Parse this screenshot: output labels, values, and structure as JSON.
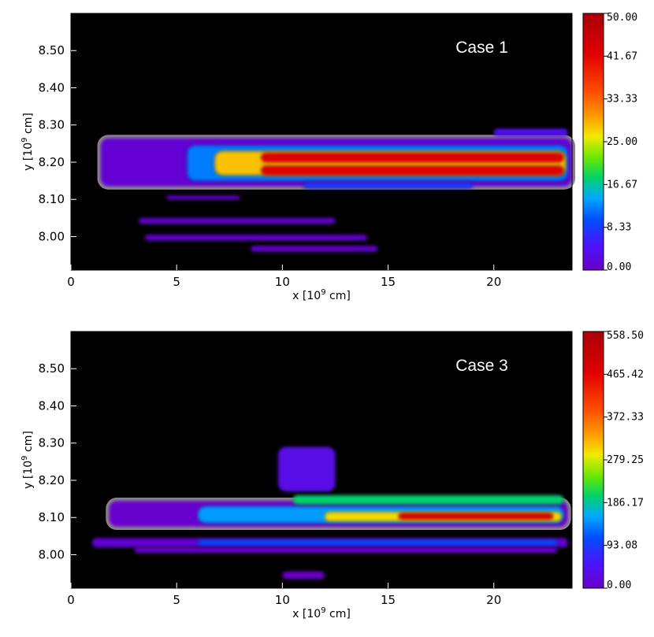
{
  "chart_data": [
    {
      "type": "heatmap",
      "title": "Case 1",
      "xlabel_base": "x [10",
      "xlabel_exp": "9",
      "xlabel_unit": " cm]",
      "ylabel_base": "y [10",
      "ylabel_exp": "9",
      "ylabel_unit": " cm]",
      "xlim": [
        0,
        23.7
      ],
      "ylim": [
        7.91,
        8.6
      ],
      "x_ticks": [
        0,
        5,
        10,
        15,
        20
      ],
      "x_tick_labels": [
        "0",
        "5",
        "10",
        "15",
        "20"
      ],
      "y_ticks": [
        8.0,
        8.1,
        8.2,
        8.3,
        8.4,
        8.5
      ],
      "y_tick_labels": [
        "8.00",
        "8.10",
        "8.20",
        "8.30",
        "8.40",
        "8.50"
      ],
      "colorbar": {
        "min": 0.0,
        "max": 50.0,
        "ticks": [
          0.0,
          8.33,
          16.67,
          25.0,
          33.33,
          41.67,
          50.0
        ],
        "tick_labels": [
          "0.00",
          "8.33",
          "16.67",
          "25.00",
          "33.33",
          "41.67",
          "50.00"
        ]
      },
      "features": [
        {
          "shape": "band",
          "x": [
            1.4,
            23.7
          ],
          "y": [
            8.135,
            8.265
          ],
          "value": 1
        },
        {
          "shape": "band",
          "x": [
            5.5,
            23.5
          ],
          "y": [
            8.15,
            8.245
          ],
          "value": 12
        },
        {
          "shape": "band",
          "x": [
            6.8,
            23.4
          ],
          "y": [
            8.165,
            8.23
          ],
          "value": 28
        },
        {
          "shape": "band",
          "x": [
            9,
            23.3
          ],
          "y": [
            8.2,
            8.225
          ],
          "value": 42
        },
        {
          "shape": "band",
          "x": [
            9,
            23.3
          ],
          "y": [
            8.165,
            8.19
          ],
          "value": 42
        },
        {
          "shape": "band",
          "x": [
            11,
            19
          ],
          "y": [
            8.13,
            8.145
          ],
          "value": 8
        },
        {
          "shape": "band",
          "x": [
            4.5,
            8
          ],
          "y": [
            8.1,
            8.11
          ],
          "value": 1
        },
        {
          "shape": "band",
          "x": [
            3.2,
            12.5
          ],
          "y": [
            8.035,
            8.05
          ],
          "value": 1
        },
        {
          "shape": "band",
          "x": [
            3.5,
            14
          ],
          "y": [
            7.99,
            8.005
          ],
          "value": 1
        },
        {
          "shape": "band",
          "x": [
            8.5,
            14.5
          ],
          "y": [
            7.96,
            7.975
          ],
          "value": 1
        },
        {
          "shape": "band",
          "x": [
            20,
            23.5
          ],
          "y": [
            8.27,
            8.29
          ],
          "value": 4
        }
      ]
    },
    {
      "type": "heatmap",
      "title": "Case 3",
      "xlabel_base": "x [10",
      "xlabel_exp": "9",
      "xlabel_unit": " cm]",
      "ylabel_base": "y [10",
      "ylabel_exp": "9",
      "ylabel_unit": " cm]",
      "xlim": [
        0,
        23.7
      ],
      "ylim": [
        7.91,
        8.6
      ],
      "x_ticks": [
        0,
        5,
        10,
        15,
        20
      ],
      "x_tick_labels": [
        "0",
        "5",
        "10",
        "15",
        "20"
      ],
      "y_ticks": [
        8.0,
        8.1,
        8.2,
        8.3,
        8.4,
        8.5
      ],
      "y_tick_labels": [
        "8.00",
        "8.10",
        "8.20",
        "8.30",
        "8.40",
        "8.50"
      ],
      "colorbar": {
        "min": 0.0,
        "max": 558.5,
        "ticks": [
          0.0,
          93.08,
          186.17,
          279.25,
          372.33,
          465.42,
          558.5
        ],
        "tick_labels": [
          "0.00",
          "93.08",
          "186.17",
          "279.25",
          "372.33",
          "465.42",
          "558.50"
        ]
      },
      "features": [
        {
          "shape": "band",
          "x": [
            1.8,
            23.5
          ],
          "y": [
            8.075,
            8.145
          ],
          "value": 5
        },
        {
          "shape": "band",
          "x": [
            6,
            23.3
          ],
          "y": [
            8.085,
            8.13
          ],
          "value": 150
        },
        {
          "shape": "band",
          "x": [
            12,
            23.2
          ],
          "y": [
            8.09,
            8.115
          ],
          "value": 300
        },
        {
          "shape": "band",
          "x": [
            15.5,
            22.8
          ],
          "y": [
            8.095,
            8.112
          ],
          "value": 470
        },
        {
          "shape": "band",
          "x": [
            1,
            23.5
          ],
          "y": [
            8.02,
            8.045
          ],
          "value": 10
        },
        {
          "shape": "band",
          "x": [
            6,
            23
          ],
          "y": [
            8.025,
            8.04
          ],
          "value": 110
        },
        {
          "shape": "band",
          "x": [
            3,
            23
          ],
          "y": [
            8.005,
            8.02
          ],
          "value": 5
        },
        {
          "shape": "band",
          "x": [
            10.5,
            23.3
          ],
          "y": [
            8.135,
            8.16
          ],
          "value": 200
        },
        {
          "shape": "band",
          "x": [
            9.8,
            12.5
          ],
          "y": [
            8.17,
            8.29
          ],
          "value": 30
        },
        {
          "shape": "band",
          "x": [
            10,
            12
          ],
          "y": [
            7.935,
            7.955
          ],
          "value": 2
        }
      ]
    }
  ]
}
